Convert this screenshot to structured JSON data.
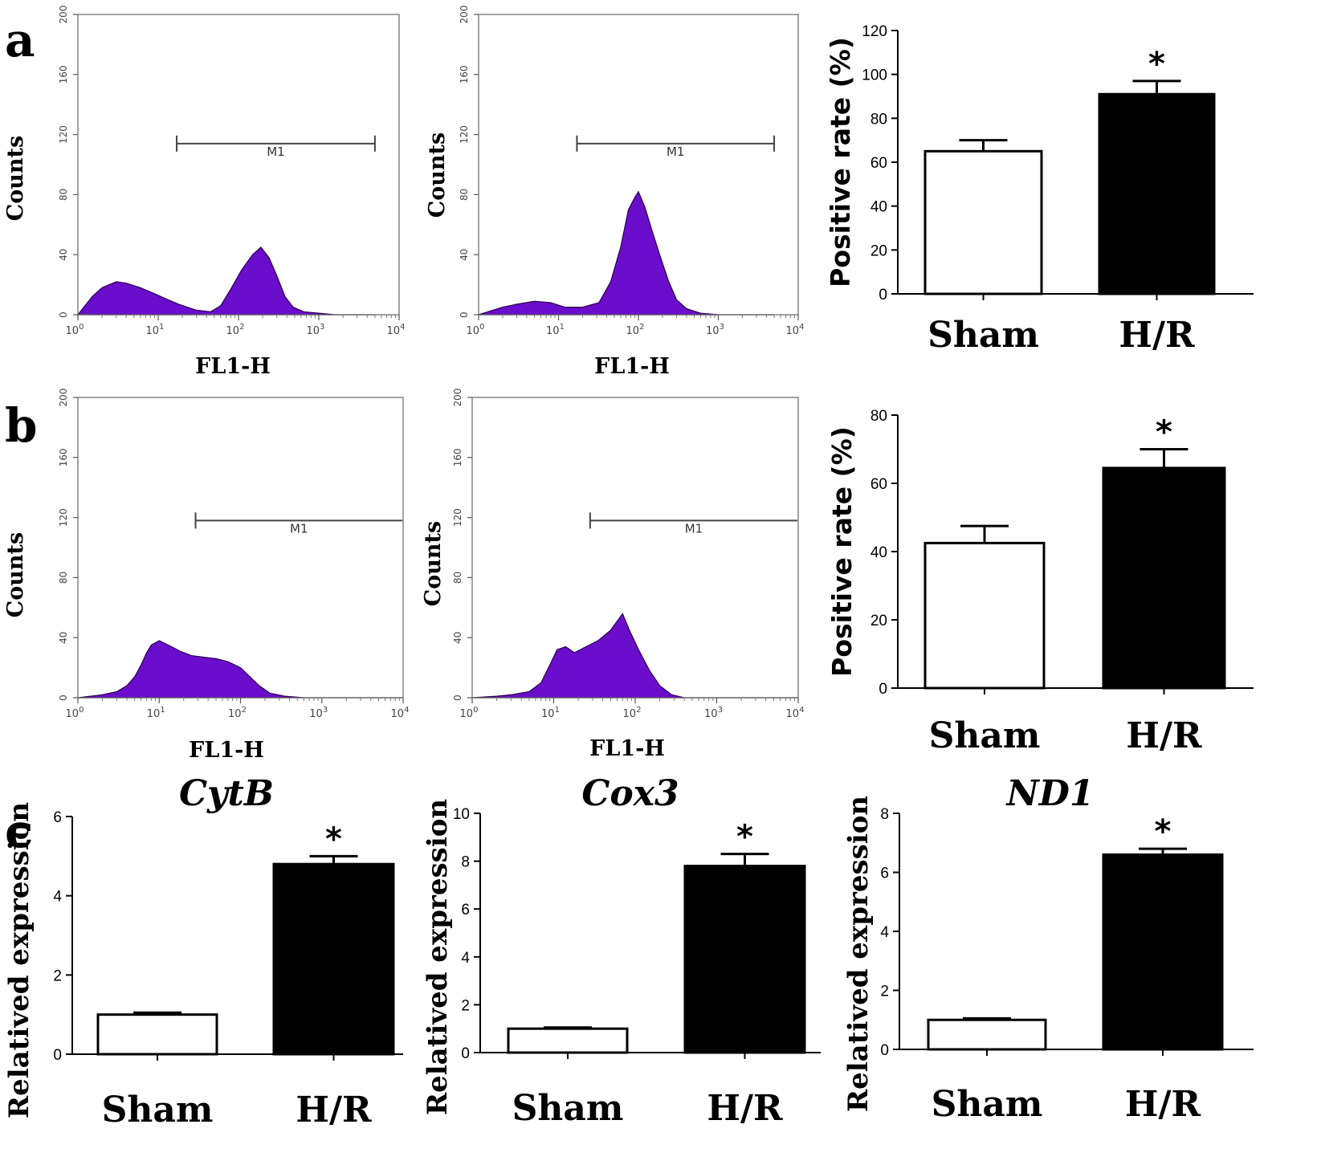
{
  "panel_labels": [
    "a",
    "b",
    "c"
  ],
  "chart_data": [
    {
      "id": "a-hist-sham",
      "type": "area",
      "panel": "a",
      "xlabel": "FL1-H",
      "ylabel": "Counts",
      "xscale": "log",
      "xlim": [
        1,
        10000
      ],
      "ylim": [
        0,
        200
      ],
      "yticks": [
        0,
        40,
        80,
        120,
        160,
        200
      ],
      "xticks": [
        "0",
        "1",
        "2",
        "3",
        "4"
      ],
      "tick_base": "10",
      "marker": {
        "label": "M1",
        "from": 17,
        "to": 5000,
        "count": 114
      },
      "fill_color": "#6a0dcc",
      "curve": [
        [
          1,
          0
        ],
        [
          1.5,
          12
        ],
        [
          2,
          18
        ],
        [
          3,
          22
        ],
        [
          4,
          21
        ],
        [
          6,
          18
        ],
        [
          9,
          14
        ],
        [
          12,
          11
        ],
        [
          18,
          7
        ],
        [
          30,
          3
        ],
        [
          45,
          2
        ],
        [
          60,
          6
        ],
        [
          80,
          17
        ],
        [
          110,
          30
        ],
        [
          150,
          40
        ],
        [
          190,
          45
        ],
        [
          240,
          38
        ],
        [
          300,
          26
        ],
        [
          380,
          12
        ],
        [
          480,
          5
        ],
        [
          650,
          2
        ],
        [
          1000,
          1
        ],
        [
          1600,
          0
        ],
        [
          5000,
          0
        ]
      ]
    },
    {
      "id": "a-hist-hr",
      "type": "area",
      "panel": "a",
      "xlabel": "FL1-H",
      "ylabel": "Counts",
      "xscale": "log",
      "xlim": [
        1,
        10000
      ],
      "ylim": [
        0,
        200
      ],
      "yticks": [
        0,
        40,
        80,
        120,
        160,
        200
      ],
      "xticks": [
        "0",
        "1",
        "2",
        "3",
        "4"
      ],
      "tick_base": "10",
      "marker": {
        "label": "M1",
        "from": 17,
        "to": 5000,
        "count": 114
      },
      "fill_color": "#6a0dcc",
      "curve": [
        [
          1,
          0
        ],
        [
          1.5,
          3
        ],
        [
          2,
          5
        ],
        [
          3,
          7
        ],
        [
          5,
          9
        ],
        [
          8,
          8
        ],
        [
          12,
          5
        ],
        [
          20,
          5
        ],
        [
          32,
          8
        ],
        [
          45,
          22
        ],
        [
          60,
          45
        ],
        [
          75,
          70
        ],
        [
          90,
          78
        ],
        [
          100,
          82
        ],
        [
          120,
          72
        ],
        [
          150,
          55
        ],
        [
          190,
          38
        ],
        [
          240,
          22
        ],
        [
          300,
          10
        ],
        [
          400,
          4
        ],
        [
          600,
          1
        ],
        [
          1000,
          0
        ],
        [
          5000,
          0
        ]
      ]
    },
    {
      "id": "a-bar",
      "type": "bar",
      "panel": "a",
      "categories": [
        "Sham",
        "H/R"
      ],
      "values": [
        65,
        91
      ],
      "errors": [
        5,
        6
      ],
      "colors": [
        "#ffffff",
        "#000000"
      ],
      "significance": [
        "",
        "*"
      ],
      "ylabel": "Positive rate (%)",
      "ylim": [
        0,
        120
      ],
      "yticks": [
        0,
        20,
        40,
        60,
        80,
        100,
        120
      ]
    },
    {
      "id": "b-hist-sham",
      "type": "area",
      "panel": "b",
      "xlabel": "FL1-H",
      "ylabel": "Counts",
      "xscale": "log",
      "xlim": [
        1,
        10000
      ],
      "ylim": [
        0,
        200
      ],
      "yticks": [
        0,
        40,
        80,
        120,
        160,
        200
      ],
      "xticks": [
        "0",
        "1",
        "2",
        "3",
        "4"
      ],
      "tick_base": "10",
      "marker": {
        "label": "M1",
        "from": 28,
        "to": 10000,
        "count": 118
      },
      "fill_color": "#6a0dcc",
      "curve": [
        [
          1,
          0
        ],
        [
          2,
          2
        ],
        [
          3,
          4
        ],
        [
          4,
          8
        ],
        [
          5,
          14
        ],
        [
          6,
          22
        ],
        [
          7,
          30
        ],
        [
          8,
          35
        ],
        [
          10,
          38
        ],
        [
          13,
          35
        ],
        [
          18,
          31
        ],
        [
          25,
          28
        ],
        [
          35,
          27
        ],
        [
          50,
          26
        ],
        [
          70,
          24
        ],
        [
          100,
          20
        ],
        [
          130,
          14
        ],
        [
          170,
          8
        ],
        [
          230,
          3
        ],
        [
          350,
          1
        ],
        [
          600,
          0
        ],
        [
          10000,
          0
        ]
      ]
    },
    {
      "id": "b-hist-hr",
      "type": "area",
      "panel": "b",
      "xlabel": "FL1-H",
      "ylabel": "Counts",
      "xscale": "log",
      "xlim": [
        1,
        10000
      ],
      "ylim": [
        0,
        200
      ],
      "yticks": [
        0,
        40,
        80,
        120,
        160,
        200
      ],
      "xticks": [
        "0",
        "1",
        "2",
        "3",
        "4"
      ],
      "tick_base": "10",
      "marker": {
        "label": "M1",
        "from": 28,
        "to": 10000,
        "count": 118
      },
      "fill_color": "#6a0dcc",
      "curve": [
        [
          1,
          0
        ],
        [
          2,
          1
        ],
        [
          3,
          2
        ],
        [
          5,
          4
        ],
        [
          7,
          10
        ],
        [
          9,
          22
        ],
        [
          11,
          32
        ],
        [
          14,
          34
        ],
        [
          18,
          30
        ],
        [
          25,
          34
        ],
        [
          35,
          38
        ],
        [
          50,
          45
        ],
        [
          62,
          52
        ],
        [
          70,
          56
        ],
        [
          85,
          45
        ],
        [
          110,
          32
        ],
        [
          150,
          18
        ],
        [
          200,
          8
        ],
        [
          280,
          2
        ],
        [
          400,
          0
        ],
        [
          10000,
          0
        ]
      ]
    },
    {
      "id": "b-bar",
      "type": "bar",
      "panel": "b",
      "categories": [
        "Sham",
        "H/R"
      ],
      "values": [
        42.5,
        64.5
      ],
      "errors": [
        5,
        5.5
      ],
      "colors": [
        "#ffffff",
        "#000000"
      ],
      "significance": [
        "",
        "*"
      ],
      "ylabel": "Positive rate (%)",
      "ylim": [
        0,
        80
      ],
      "yticks": [
        0,
        20,
        40,
        60,
        80
      ]
    },
    {
      "id": "c-cytb",
      "type": "bar",
      "panel": "c",
      "title": "CytB",
      "categories": [
        "Sham",
        "H/R"
      ],
      "values": [
        1.0,
        4.8
      ],
      "errors": [
        0.05,
        0.2
      ],
      "colors": [
        "#ffffff",
        "#000000"
      ],
      "significance": [
        "",
        "*"
      ],
      "ylabel": "Relatived expression",
      "ylim": [
        0,
        6
      ],
      "yticks": [
        0,
        2,
        4,
        6
      ]
    },
    {
      "id": "c-cox3",
      "type": "bar",
      "panel": "c",
      "title": "Cox3",
      "categories": [
        "Sham",
        "H/R"
      ],
      "values": [
        1.0,
        7.8
      ],
      "errors": [
        0.05,
        0.5
      ],
      "colors": [
        "#ffffff",
        "#000000"
      ],
      "significance": [
        "",
        "*"
      ],
      "ylabel": "Relatived expression",
      "ylim": [
        0,
        10
      ],
      "yticks": [
        0,
        2,
        4,
        6,
        8,
        10
      ]
    },
    {
      "id": "c-nd1",
      "type": "bar",
      "panel": "c",
      "title": "ND1",
      "categories": [
        "Sham",
        "H/R"
      ],
      "values": [
        1.0,
        6.6
      ],
      "errors": [
        0.05,
        0.2
      ],
      "colors": [
        "#ffffff",
        "#000000"
      ],
      "significance": [
        "",
        "*"
      ],
      "ylabel": "Relatived expression",
      "ylim": [
        0,
        8
      ],
      "yticks": [
        0,
        2,
        4,
        6,
        8
      ]
    }
  ]
}
